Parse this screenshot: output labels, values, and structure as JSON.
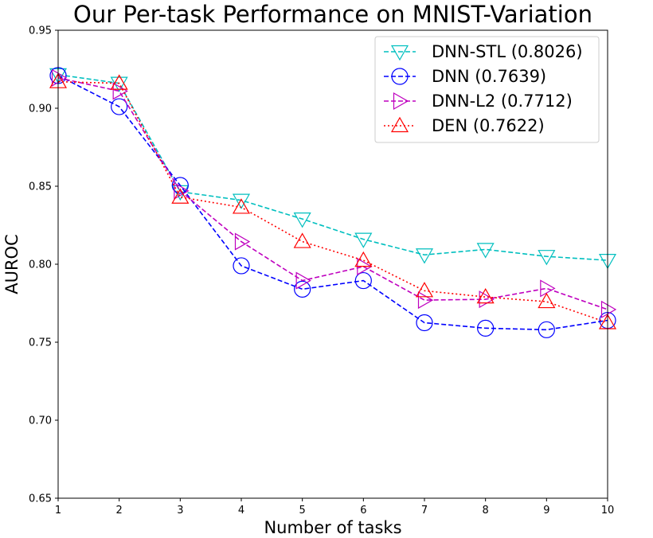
{
  "chart_data": {
    "type": "line",
    "title": "Our Per-task Performance on MNIST-Variation",
    "xlabel": "Number of tasks",
    "ylabel": "AUROC",
    "x": [
      1,
      2,
      3,
      4,
      5,
      6,
      7,
      8,
      9,
      10
    ],
    "xlim": [
      1,
      10
    ],
    "ylim": [
      0.65,
      0.95
    ],
    "xticks": [
      "1",
      "2",
      "3",
      "4",
      "5",
      "6",
      "7",
      "8",
      "9",
      "10"
    ],
    "yticks": [
      "0.65",
      "0.70",
      "0.75",
      "0.80",
      "0.85",
      "0.90",
      "0.95"
    ],
    "grid": false,
    "legend_position": "top-right",
    "series": [
      {
        "name": "DNN-STL (0.8026)",
        "color": "#00bfbf",
        "linestyle": "dashed",
        "marker": "triangle-down",
        "values": [
          0.9215,
          0.916,
          0.8465,
          0.841,
          0.829,
          0.816,
          0.806,
          0.8095,
          0.805,
          0.8025
        ]
      },
      {
        "name": "DNN (0.7639)",
        "color": "#0000ff",
        "linestyle": "dashed",
        "marker": "circle",
        "values": [
          0.921,
          0.901,
          0.8505,
          0.799,
          0.784,
          0.7895,
          0.7625,
          0.759,
          0.758,
          0.764
        ]
      },
      {
        "name": "DNN-L2 (0.7712)",
        "color": "#bf00bf",
        "linestyle": "dashed",
        "marker": "triangle-right",
        "values": [
          0.9195,
          0.911,
          0.847,
          0.8145,
          0.7895,
          0.7985,
          0.777,
          0.7775,
          0.7845,
          0.771
        ]
      },
      {
        "name": "DEN (0.7622)",
        "color": "#ff0000",
        "linestyle": "dotted",
        "marker": "triangle-up",
        "values": [
          0.917,
          0.916,
          0.843,
          0.8365,
          0.8145,
          0.8025,
          0.783,
          0.779,
          0.776,
          0.7625
        ]
      }
    ]
  }
}
